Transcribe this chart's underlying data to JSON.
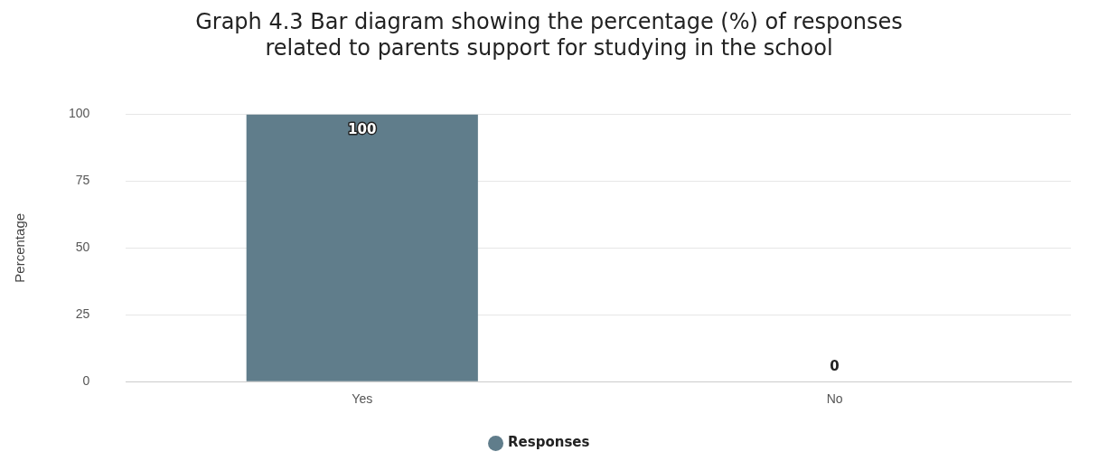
{
  "chart_data": {
    "type": "bar",
    "title": "Graph 4.3 Bar diagram showing the percentage (%) of responses related to parents support for studying in the school",
    "ylabel": "Percentage",
    "categories": [
      "Yes",
      "No"
    ],
    "series": [
      {
        "name": "Responses",
        "color": "#607d8b",
        "values": [
          100,
          0
        ]
      }
    ],
    "ylim": [
      0,
      100
    ],
    "yticks": [
      0,
      25,
      50,
      75,
      100
    ],
    "grid": "y",
    "legend": "bottom",
    "data_labels": true
  }
}
